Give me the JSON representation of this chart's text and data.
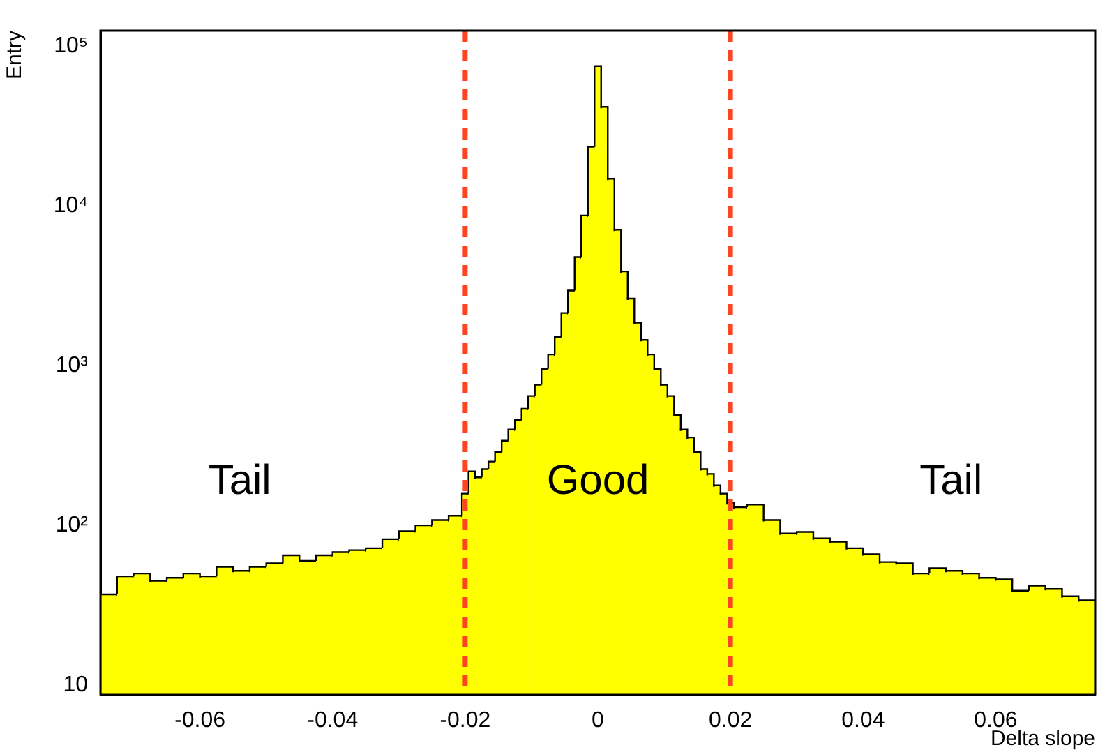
{
  "chart_data": {
    "type": "histogram",
    "xlabel": "Delta slope",
    "ylabel": "Entry",
    "bins": [
      -0.075,
      -0.0725,
      -0.07,
      -0.0675,
      -0.065,
      -0.0625,
      -0.06,
      -0.0575,
      -0.055,
      -0.0525,
      -0.05,
      -0.0475,
      -0.045,
      -0.0425,
      -0.04,
      -0.0375,
      -0.035,
      -0.0325,
      -0.03,
      -0.0275,
      -0.025,
      -0.0225,
      -0.0205,
      -0.0195,
      -0.0185,
      -0.0175,
      -0.0165,
      -0.0155,
      -0.0145,
      -0.0135,
      -0.0125,
      -0.0115,
      -0.0105,
      -0.0095,
      -0.0085,
      -0.0075,
      -0.0065,
      -0.0055,
      -0.0045,
      -0.0035,
      -0.0025,
      -0.0015,
      -0.0005,
      0.0005,
      0.0015,
      0.0025,
      0.0035,
      0.0045,
      0.0055,
      0.0065,
      0.0075,
      0.0085,
      0.0095,
      0.0105,
      0.0115,
      0.0125,
      0.0135,
      0.0145,
      0.0155,
      0.0165,
      0.0175,
      0.0185,
      0.0195,
      0.0205,
      0.0225,
      0.025,
      0.0275,
      0.03,
      0.0325,
      0.035,
      0.0375,
      0.04,
      0.0425,
      0.045,
      0.0475,
      0.05,
      0.0525,
      0.055,
      0.0575,
      0.06,
      0.0625,
      0.065,
      0.0675,
      0.07,
      0.0725,
      0.075
    ],
    "values": [
      37,
      48,
      50,
      45,
      47,
      50,
      48,
      55,
      52,
      55,
      58,
      65,
      60,
      65,
      68,
      70,
      72,
      82,
      92,
      100,
      108,
      115,
      158,
      218,
      200,
      225,
      251,
      288,
      339,
      398,
      457,
      537,
      646,
      759,
      955,
      1175,
      1514,
      2138,
      2951,
      4786,
      8710,
      23400,
      75000,
      41700,
      14800,
      7100,
      3890,
      2630,
      1860,
      1450,
      1175,
      955,
      759,
      646,
      490,
      398,
      355,
      288,
      225,
      210,
      178,
      158,
      138,
      130,
      135,
      108,
      89,
      91,
      83,
      79,
      72,
      66,
      59,
      58,
      50,
      54,
      52,
      50,
      47,
      46,
      39,
      42,
      40,
      36,
      34
    ],
    "color": "#ffff00",
    "log": "y",
    "xlim": [
      -0.075,
      0.075
    ],
    "xticks": [
      -0.06,
      -0.04,
      -0.02,
      0,
      0.02,
      0.04,
      0.06
    ],
    "ylim": [
      8.7,
      125000
    ],
    "yticks": [
      10,
      {
        "value": 100,
        "label": "10²"
      },
      {
        "value": 1000,
        "label": "10³"
      },
      {
        "value": 10000,
        "label": "10⁴"
      },
      {
        "value": 100000,
        "label": "10⁵"
      }
    ],
    "grid": false,
    "legend": false,
    "ref_lines": [
      {
        "axis": "x",
        "value": -0.02,
        "color": "#ff4422",
        "line_style": "dashed"
      },
      {
        "axis": "x",
        "value": 0.02,
        "color": "#ff4422",
        "line_style": "dashed"
      }
    ],
    "annotations": [
      "Tail",
      "Good",
      "Tail"
    ]
  }
}
